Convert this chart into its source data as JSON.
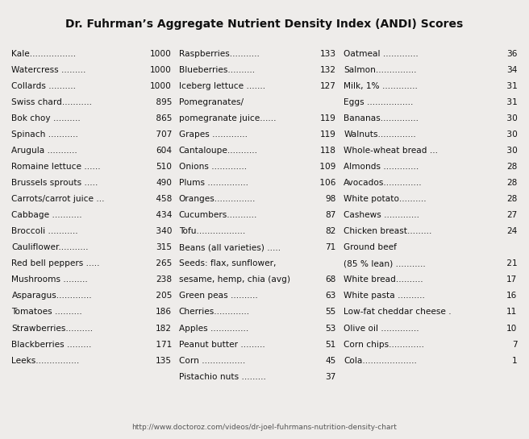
{
  "title": "Dr. Fuhrman’s Aggregate Nutrient Density Index (ANDI) Scores",
  "url": "http://www.doctoroz.com/videos/dr-joel-fuhrmans-nutrition-density-chart",
  "bg_color": "#eeecе8",
  "border_color": "#c0bdb8",
  "title_color": "#111111",
  "text_color": "#111111",
  "url_color": "#555555",
  "col1": [
    [
      "Kale             1000",
      ""
    ],
    [
      "Watercress        1000",
      ""
    ],
    [
      "Collards           1000",
      ""
    ],
    [
      "Swiss chard.        895",
      ""
    ],
    [
      "Bok choy          865",
      ""
    ],
    [
      "Spinach           707",
      ""
    ],
    [
      "Arugula          604",
      ""
    ],
    [
      "Romaine lettuce    510",
      ""
    ],
    [
      "Brussels sprouts    490",
      ""
    ],
    [
      "Carrots/carrot juice   458",
      ""
    ],
    [
      "Cabbage         434",
      ""
    ],
    [
      "Broccoli         340",
      ""
    ],
    [
      "Cauliflower.      315",
      ""
    ],
    [
      "Red bell peppers    265",
      ""
    ],
    [
      "Mushrooms      238",
      ""
    ],
    [
      "Asparagus.       205",
      ""
    ],
    [
      "Tomatoes       186",
      ""
    ],
    [
      "Strawberries.     182",
      ""
    ],
    [
      "Blackberries      171",
      ""
    ],
    [
      "Leeks.          135",
      ""
    ]
  ],
  "col2": [
    [
      "Raspberries.      133",
      ""
    ],
    [
      "Blueberries       132",
      ""
    ],
    [
      "Iceberg lettuce    127",
      ""
    ],
    [
      "Pomegranates/",
      ""
    ],
    [
      "pomegranate juice.  119",
      ""
    ],
    [
      "Grapes         119",
      ""
    ],
    [
      "Cantaloupe.      118",
      ""
    ],
    [
      "Onions          109",
      ""
    ],
    [
      "Plums          106",
      ""
    ],
    [
      "Oranges.        98",
      ""
    ],
    [
      "Cucumbers       87",
      ""
    ],
    [
      "Tofu.          82",
      ""
    ],
    [
      "Beans (all varieties)   71",
      ""
    ],
    [
      "Seeds: flax, sunflower,",
      ""
    ],
    [
      "sesame, hemp, chia (avg)68",
      ""
    ],
    [
      "Green peas       63",
      ""
    ],
    [
      "Cherries         55",
      ""
    ],
    [
      "Apples         53",
      ""
    ],
    [
      "Peanut butter      51",
      ""
    ],
    [
      "Corn           45",
      ""
    ],
    [
      "Pistachio nuts     37",
      ""
    ]
  ],
  "col3": [
    [
      "Oatmeal        36",
      ""
    ],
    [
      "Salmon.        34",
      ""
    ],
    [
      "Milk, 1%       31",
      ""
    ],
    [
      "Eggs           31",
      ""
    ],
    [
      "Bananas.        30",
      ""
    ],
    [
      "Walnuts.        30",
      ""
    ],
    [
      "Whole-wheat bread   30",
      ""
    ],
    [
      "Almonds       28",
      ""
    ],
    [
      "Avocados.      28",
      ""
    ],
    [
      "White potato.    28",
      ""
    ],
    [
      "Cashews       27",
      ""
    ],
    [
      "Chicken breast.   24",
      ""
    ],
    [
      "Ground beef",
      ""
    ],
    [
      "(85 % lean)     21",
      ""
    ],
    [
      "White bread.     17",
      ""
    ],
    [
      "White pasta     16",
      ""
    ],
    [
      "Low-fat cheddar cheese . 11",
      ""
    ],
    [
      "Olive oil       10",
      ""
    ],
    [
      "Corn chips.      7",
      ""
    ],
    [
      "Cola.          1",
      ""
    ]
  ]
}
